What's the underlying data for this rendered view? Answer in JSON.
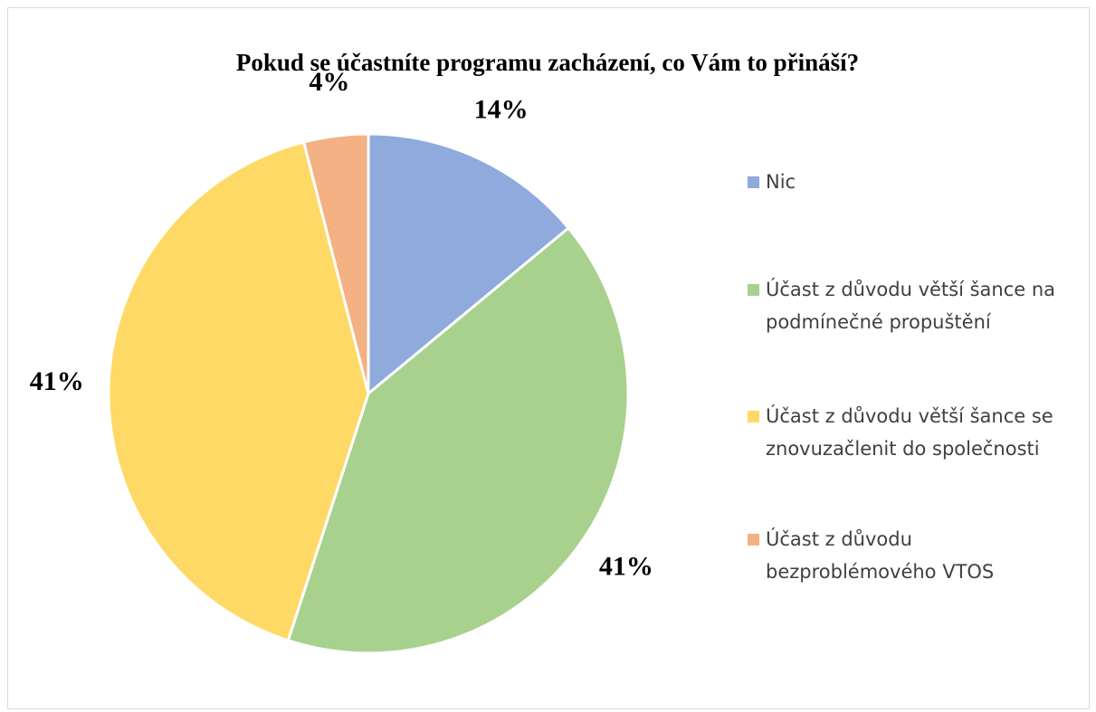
{
  "chart_data": {
    "type": "pie",
    "title": "Pokud se účastníte programu zacházení, co Vám to přináší?",
    "categories": [
      "Nic",
      "Účast z důvodu větší šance na podmínečné propuštění",
      "Účast z důvodu větší šance se znovuzačlenit do společnosti",
      "Účast z důvodu bezproblémového VTOS"
    ],
    "values": [
      14,
      41,
      41,
      4
    ],
    "value_labels": [
      "14%",
      "41%",
      "41%",
      "4%"
    ],
    "colors": [
      "#8faadc",
      "#a9d18e",
      "#ffd966",
      "#f4b183"
    ],
    "legend": "right"
  }
}
